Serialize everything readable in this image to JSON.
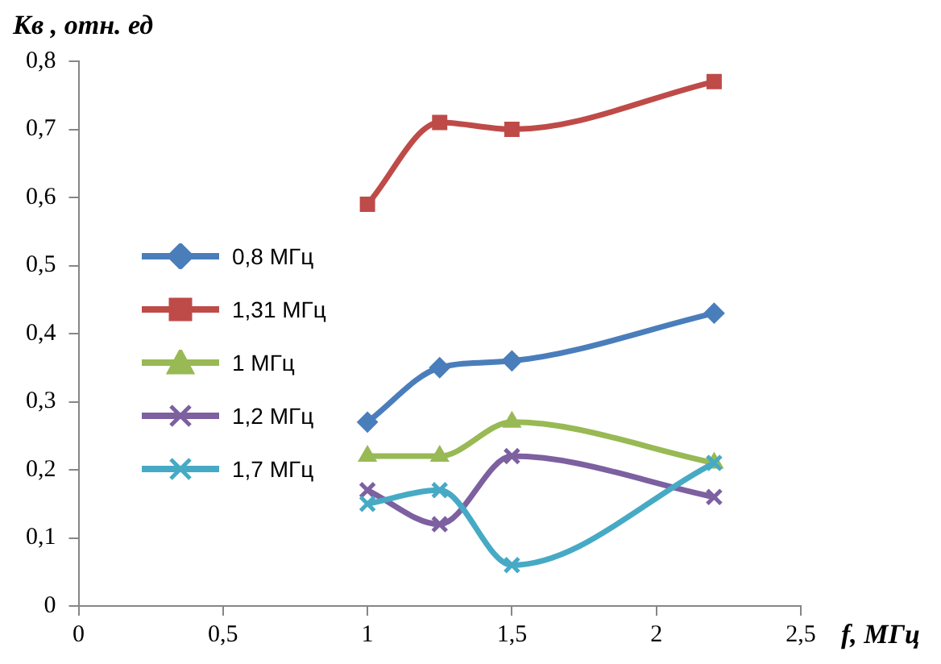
{
  "chart_data": {
    "type": "line",
    "xlabel": "f, МГц",
    "ylabel": "Кв , отн. ед",
    "x": [
      1,
      1.25,
      1.5,
      2.2
    ],
    "series": [
      {
        "name": "0,8 МГц",
        "color": "#4a7ebb",
        "marker": "diamond",
        "values": [
          0.27,
          0.35,
          0.36,
          0.43
        ]
      },
      {
        "name": "1,31 МГц",
        "color": "#be4b48",
        "marker": "square",
        "values": [
          0.59,
          0.71,
          0.7,
          0.77
        ]
      },
      {
        "name": "1 МГц",
        "color": "#98b954",
        "marker": "triangle",
        "values": [
          0.22,
          0.22,
          0.27,
          0.21
        ]
      },
      {
        "name": "1,2 МГц",
        "color": "#7d60a0",
        "marker": "cross",
        "values": [
          0.17,
          0.12,
          0.22,
          0.16
        ]
      },
      {
        "name": "1,7 МГц",
        "color": "#46aac5",
        "marker": "cross",
        "values": [
          0.15,
          0.17,
          0.06,
          0.21
        ]
      }
    ],
    "xlim": [
      0,
      2.5
    ],
    "xticks": [
      0,
      {
        "value": 0.5,
        "label": "0,5"
      },
      1,
      {
        "value": 1.5,
        "label": "1,5"
      },
      2,
      {
        "value": 2.5,
        "label": "2,5"
      }
    ],
    "ylim": [
      0,
      0.8
    ],
    "yticks": [
      0,
      {
        "value": 0.1,
        "label": "0,1"
      },
      {
        "value": 0.2,
        "label": "0,2"
      },
      {
        "value": 0.3,
        "label": "0,3"
      },
      {
        "value": 0.4,
        "label": "0,4"
      },
      {
        "value": 0.5,
        "label": "0,5"
      },
      {
        "value": 0.6,
        "label": "0,6"
      },
      {
        "value": 0.7,
        "label": "0,7"
      },
      {
        "value": 0.8,
        "label": "0,8"
      }
    ],
    "grid": false,
    "legend": "left",
    "line_style": "solid"
  }
}
